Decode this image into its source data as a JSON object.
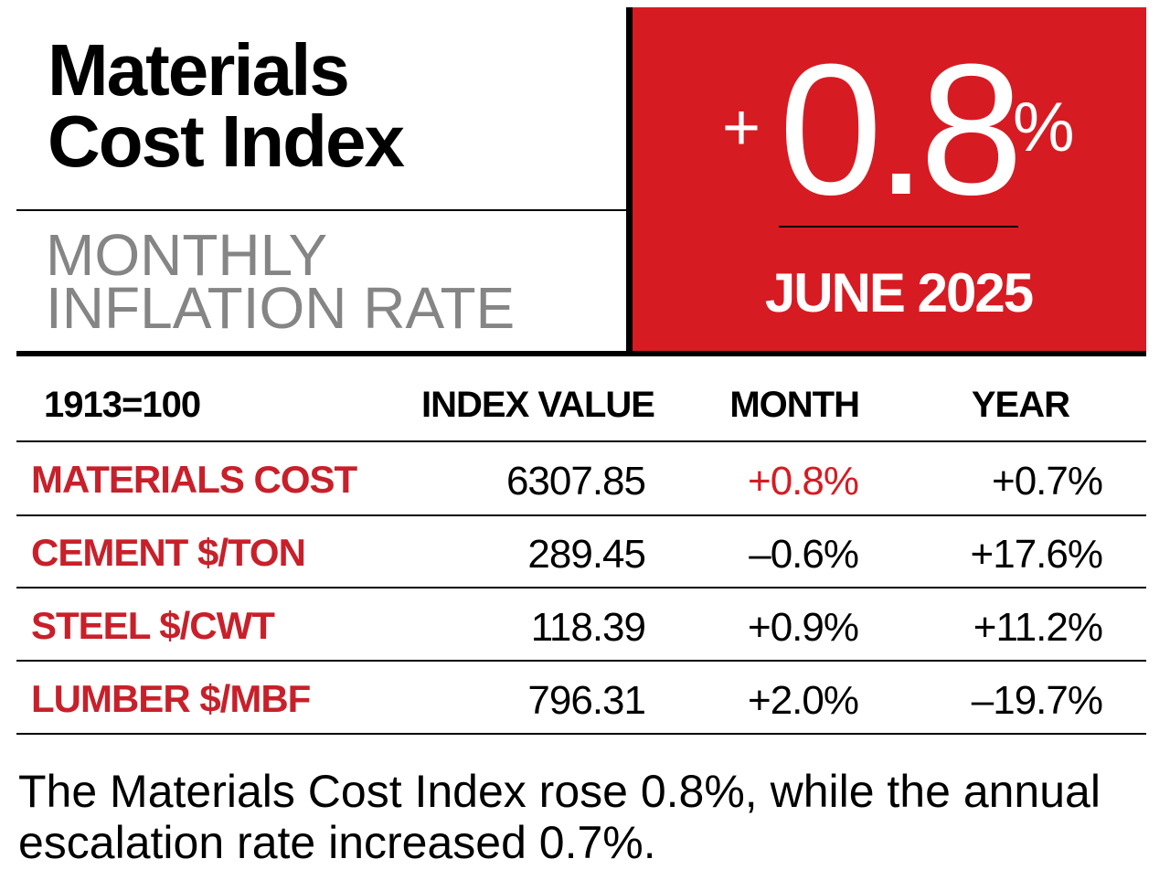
{
  "header": {
    "title_line1": "Materials",
    "title_line2": "Cost Index",
    "subtitle_line1": "MONTHLY",
    "subtitle_line2": "INFLATION RATE"
  },
  "highlight": {
    "sign": "+",
    "value": "0.8",
    "unit": "%",
    "period": "JUNE 2025",
    "background_color": "#d71b23"
  },
  "table": {
    "columns": [
      "1913=100",
      "INDEX VALUE",
      "MONTH",
      "YEAR"
    ],
    "rows": [
      {
        "label": "MATERIALS COST",
        "index": "6307.85",
        "month": "+0.8%",
        "year": "+0.7%"
      },
      {
        "label": "CEMENT $/TON",
        "index": "289.45",
        "month": "–0.6%",
        "year": "+17.6%"
      },
      {
        "label": "STEEL $/CWT",
        "index": "118.39",
        "month": "+0.9%",
        "year": "+11.2%"
      },
      {
        "label": "LUMBER $/MBF",
        "index": "796.31",
        "month": "+2.0%",
        "year": "–19.7%"
      }
    ]
  },
  "footer": {
    "note": "The Materials Cost Index rose 0.8%, while the annual escalation rate increased 0.7%."
  }
}
